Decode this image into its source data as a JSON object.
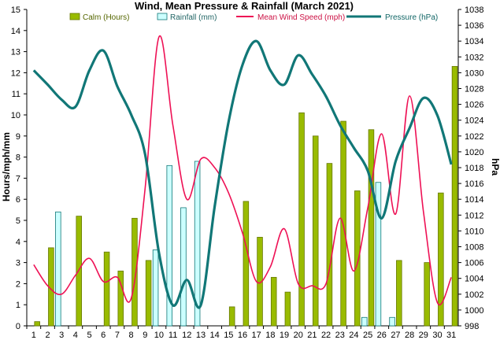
{
  "chart_data": {
    "type": "bar+line",
    "title": "Wind, Mean Pressure & Rainfall (March 2021)",
    "ylabel_left": "Hours/mph/mm",
    "ylabel_right": "hPa",
    "xlabel": "",
    "ylim_left": [
      0,
      15
    ],
    "ylim_right": [
      998,
      1038
    ],
    "categories": [
      "1",
      "2",
      "3",
      "4",
      "5",
      "6",
      "7",
      "8",
      "9",
      "10",
      "11",
      "12",
      "13",
      "14",
      "15",
      "16",
      "17",
      "18",
      "19",
      "20",
      "21",
      "22",
      "23",
      "24",
      "25",
      "26",
      "27",
      "28",
      "29",
      "30",
      "31"
    ],
    "left_ticks": [
      "0",
      "1",
      "2",
      "3",
      "4",
      "5",
      "6",
      "7",
      "8",
      "9",
      "10",
      "11",
      "12",
      "13",
      "14",
      "15"
    ],
    "right_ticks": [
      "998",
      "1000",
      "1002",
      "1004",
      "1006",
      "1008",
      "1010",
      "1012",
      "1014",
      "1016",
      "1018",
      "1020",
      "1022",
      "1024",
      "1026",
      "1028",
      "1030",
      "1032",
      "1034",
      "1036",
      "1038"
    ],
    "series": [
      {
        "name": "Calm (Hours)",
        "type": "bar",
        "axis": "left",
        "color": "#99bb00",
        "values": [
          0.2,
          3.7,
          0,
          5.2,
          0,
          3.5,
          2.6,
          5.1,
          3.1,
          0,
          0,
          0,
          0,
          0,
          0.9,
          5.9,
          4.2,
          2.3,
          1.6,
          10.1,
          9.0,
          7.7,
          9.7,
          6.4,
          9.3,
          0,
          3.1,
          0,
          3.0,
          6.3,
          12.3
        ]
      },
      {
        "name": "Rainfall (mm)",
        "type": "bar",
        "axis": "left",
        "color": "#ccffff",
        "values": [
          0,
          0,
          5.4,
          0,
          0,
          0,
          0,
          0,
          0,
          3.6,
          7.6,
          5.6,
          7.8,
          0,
          0,
          0,
          0,
          0,
          0,
          0,
          0,
          0,
          0,
          0,
          0.4,
          6.8,
          0.4,
          0,
          0,
          0,
          0
        ]
      },
      {
        "name": "Mean Wind Speed (mph)",
        "type": "line",
        "axis": "left",
        "color": "#ee1155",
        "values": [
          2.9,
          1.9,
          1.5,
          2.4,
          3.2,
          2.1,
          2.3,
          1.3,
          6.5,
          13.7,
          9.5,
          6.0,
          7.9,
          7.5,
          6.3,
          4.4,
          2.1,
          2.8,
          4.6,
          2.0,
          1.9,
          2.0,
          5.1,
          2.6,
          5.6,
          9.1,
          5.3,
          10.9,
          5.4,
          1.1,
          2.3
        ]
      },
      {
        "name": "Pressure (hPa)",
        "type": "line",
        "axis": "right",
        "color": "#117777",
        "values": [
          1030.3,
          1028.5,
          1026.6,
          1025.7,
          1030.3,
          1032.8,
          1028.3,
          1024.7,
          1019.7,
          1007.2,
          1000.6,
          1003.8,
          1000.6,
          1013.1,
          1023.8,
          1031.0,
          1034.0,
          1030.3,
          1028.5,
          1032.2,
          1029.8,
          1027.0,
          1023.4,
          1020.5,
          1017.6,
          1011.6,
          1018.8,
          1023.0,
          1026.8,
          1024.6,
          1018.4
        ]
      }
    ],
    "legend_position": "top",
    "grid": false
  }
}
